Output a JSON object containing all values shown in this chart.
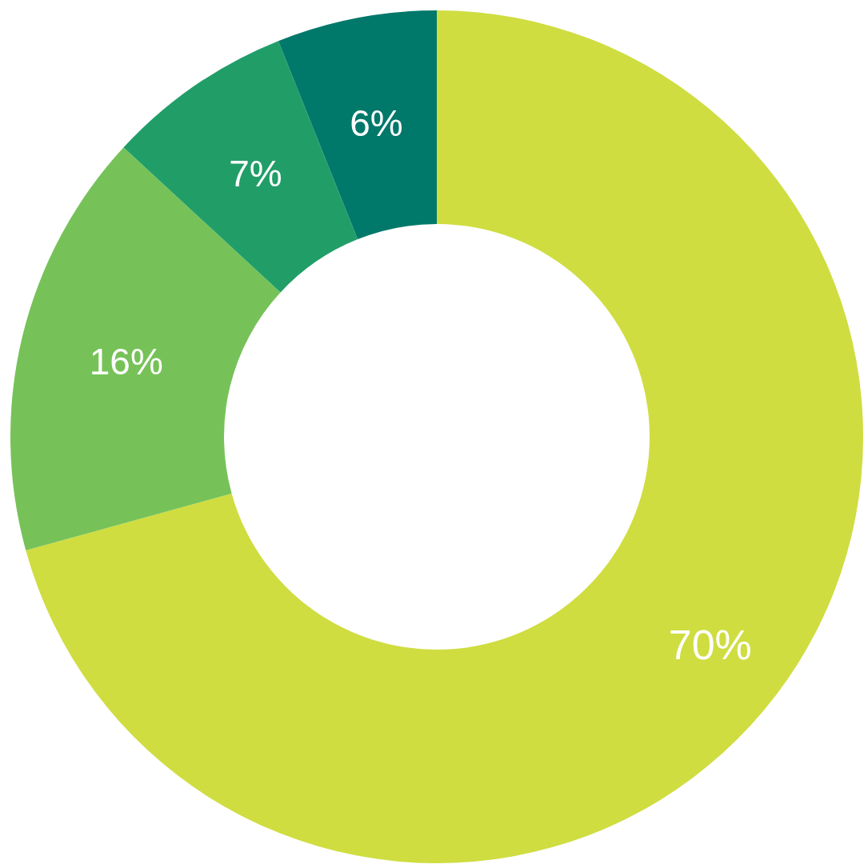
{
  "chart_data": {
    "type": "donut",
    "categories": [
      null,
      null,
      null,
      null
    ],
    "values": [
      70,
      16,
      7,
      6
    ],
    "colors": [
      "#cfdd40",
      "#76c258",
      "#219e68",
      "#00786a"
    ],
    "value_labels": [
      "70%",
      "16%",
      "7%",
      "6%"
    ],
    "legend": false
  }
}
